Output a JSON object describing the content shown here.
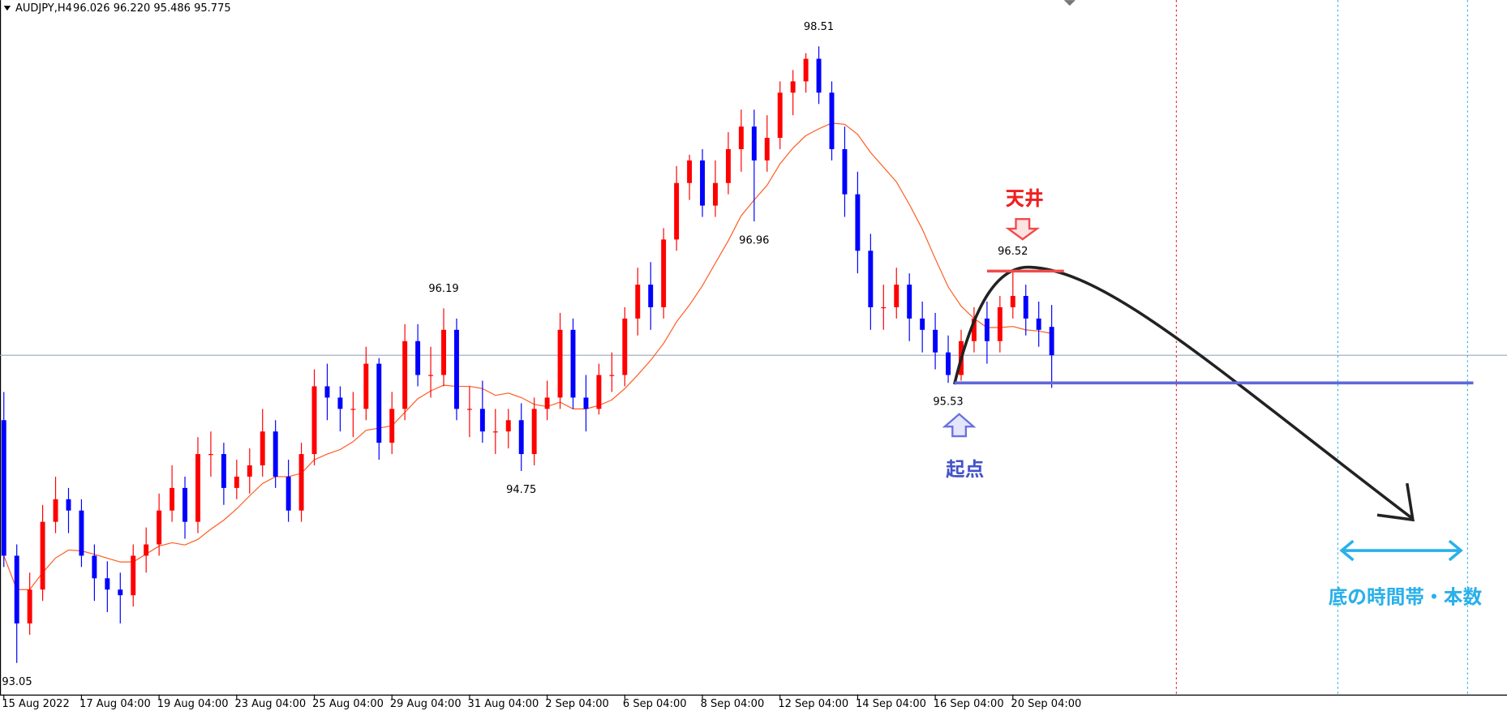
{
  "chart_data": {
    "type": "candlestick",
    "title": "AUDJPY,H4",
    "quote": "96.026 96.220 95.486 95.775",
    "categories": [
      "15 Aug 2022",
      null,
      null,
      null,
      null,
      null,
      "17 Aug 04:00",
      null,
      null,
      null,
      null,
      null,
      "19 Aug 04:00",
      null,
      null,
      null,
      null,
      null,
      "23 Aug 04:00",
      null,
      null,
      null,
      null,
      null,
      "25 Aug 04:00",
      null,
      null,
      null,
      null,
      null,
      "29 Aug 04:00",
      null,
      null,
      null,
      null,
      null,
      "31 Aug 04:00",
      null,
      null,
      null,
      null,
      null,
      "2 Sep 04:00",
      null,
      null,
      null,
      null,
      null,
      "6 Sep 04:00",
      null,
      null,
      null,
      null,
      null,
      "8 Sep 04:00",
      null,
      null,
      null,
      null,
      null,
      "12 Sep 04:00",
      null,
      null,
      null,
      null,
      null,
      "14 Sep 04:00",
      null,
      null,
      null,
      null,
      null,
      "16 Sep 04:00",
      null,
      null,
      null,
      null,
      null,
      "20 Sep 04:00",
      null,
      null,
      null
    ],
    "open": [
      95.2,
      94.0,
      93.4,
      93.7,
      94.3,
      94.5,
      94.4,
      94.0,
      93.8,
      93.7,
      93.65,
      94.0,
      94.1,
      94.4,
      94.6,
      94.3,
      94.9,
      94.9,
      94.6,
      94.7,
      94.8,
      95.1,
      94.7,
      94.4,
      94.9,
      95.5,
      95.4,
      95.3,
      95.3,
      95.7,
      95.0,
      95.3,
      95.9,
      95.6,
      95.6,
      96.0,
      95.3,
      95.3,
      95.1,
      95.1,
      95.2,
      94.9,
      95.3,
      95.4,
      96.0,
      95.4,
      95.3,
      95.6,
      95.6,
      96.1,
      96.4,
      96.2,
      96.8,
      97.3,
      97.5,
      97.1,
      97.3,
      97.6,
      97.8,
      97.5,
      97.7,
      98.1,
      98.2,
      98.4,
      98.1,
      97.6,
      97.2,
      96.7,
      96.2,
      96.2,
      96.4,
      96.1,
      96.0,
      95.8,
      95.6,
      95.9,
      96.1,
      95.9,
      96.2,
      96.3,
      96.1,
      96.026
    ],
    "high": [
      95.45,
      94.1,
      93.85,
      94.45,
      94.7,
      94.6,
      94.5,
      94.1,
      93.95,
      93.85,
      94.1,
      94.25,
      94.55,
      94.8,
      94.7,
      95.05,
      95.1,
      95.0,
      94.85,
      94.95,
      95.3,
      95.2,
      94.85,
      95.0,
      95.65,
      95.7,
      95.5,
      95.45,
      95.85,
      95.75,
      95.45,
      96.05,
      96.05,
      95.85,
      96.19,
      96.1,
      95.5,
      95.55,
      95.3,
      95.3,
      95.35,
      95.4,
      95.55,
      96.15,
      96.1,
      95.6,
      95.7,
      95.8,
      96.2,
      96.55,
      96.6,
      96.9,
      97.45,
      97.55,
      97.6,
      97.5,
      97.75,
      97.95,
      97.95,
      97.9,
      98.2,
      98.3,
      98.45,
      98.51,
      98.2,
      97.8,
      97.4,
      96.85,
      96.4,
      96.55,
      96.5,
      96.25,
      96.15,
      95.95,
      96.0,
      96.2,
      96.25,
      96.3,
      96.52,
      96.4,
      96.25,
      96.22
    ],
    "low": [
      93.9,
      93.05,
      93.3,
      93.6,
      94.2,
      94.2,
      93.9,
      93.6,
      93.5,
      93.4,
      93.55,
      93.85,
      94.0,
      94.3,
      94.15,
      94.2,
      94.7,
      94.45,
      94.5,
      94.55,
      94.7,
      94.6,
      94.3,
      94.3,
      94.8,
      95.2,
      95.1,
      95.05,
      95.2,
      94.85,
      94.9,
      95.2,
      95.5,
      95.4,
      95.5,
      95.2,
      95.05,
      95.0,
      94.9,
      94.95,
      94.75,
      94.8,
      95.2,
      95.3,
      95.3,
      95.1,
      95.25,
      95.45,
      95.5,
      95.95,
      96.0,
      96.1,
      96.7,
      97.15,
      97.0,
      97.0,
      97.2,
      97.4,
      96.96,
      97.4,
      97.6,
      97.9,
      98.1,
      98.0,
      97.5,
      97.0,
      96.5,
      96.0,
      96.0,
      96.1,
      95.9,
      95.8,
      95.65,
      95.53,
      95.55,
      95.8,
      95.7,
      95.8,
      96.1,
      95.95,
      95.85,
      95.486
    ],
    "close": [
      94.0,
      93.4,
      93.7,
      94.3,
      94.5,
      94.4,
      94.0,
      93.8,
      93.7,
      93.65,
      94.0,
      94.1,
      94.4,
      94.6,
      94.3,
      94.9,
      94.9,
      94.6,
      94.7,
      94.8,
      95.1,
      94.7,
      94.4,
      94.9,
      95.5,
      95.4,
      95.3,
      95.3,
      95.7,
      95.0,
      95.3,
      95.9,
      95.6,
      95.6,
      96.0,
      95.3,
      95.3,
      95.1,
      95.1,
      95.2,
      94.9,
      95.3,
      95.4,
      96.0,
      95.4,
      95.3,
      95.6,
      95.6,
      96.1,
      96.4,
      96.2,
      96.8,
      97.3,
      97.5,
      97.1,
      97.3,
      97.6,
      97.8,
      97.5,
      97.7,
      98.1,
      98.2,
      98.4,
      98.1,
      97.6,
      97.2,
      96.7,
      96.2,
      96.2,
      96.4,
      96.1,
      96.0,
      95.8,
      95.6,
      95.9,
      96.1,
      95.9,
      96.2,
      96.3,
      96.1,
      96.0,
      95.775
    ],
    "extreme_labels": [
      {
        "candle": 1,
        "at": "low"
      },
      {
        "candle": 34,
        "at": "high"
      },
      {
        "candle": 40,
        "at": "low"
      },
      {
        "candle": 58,
        "at": "low"
      },
      {
        "candle": 63,
        "at": "high"
      },
      {
        "candle": 73,
        "at": "low"
      },
      {
        "candle": 78,
        "at": "high"
      }
    ],
    "bid_line": 95.775,
    "ma_period": 10,
    "ylim": [
      92.77,
      98.92
    ],
    "up_color": "#ff0000",
    "down_color": "#0000ff",
    "ma_color": "#ff5a1f",
    "annotations": {
      "top": "天井",
      "start": "起点",
      "bottom_zone": "底の時間帯・本数"
    }
  }
}
